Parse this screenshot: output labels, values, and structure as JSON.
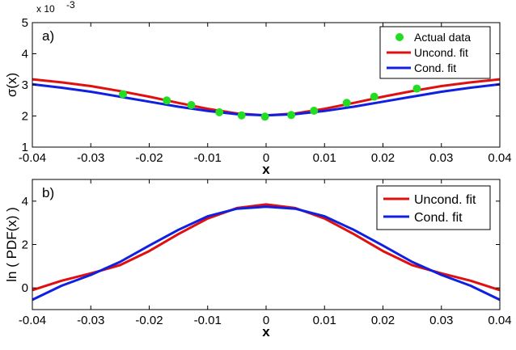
{
  "chart_data": [
    {
      "type": "line",
      "panel_label": "a)",
      "xlabel": "x",
      "ylabel": "σ(x)",
      "y_multiplier": "x 10",
      "y_multiplier_exp": "-3",
      "xlim": [
        -0.04,
        0.04
      ],
      "ylim": [
        1,
        5
      ],
      "xticks": [
        -0.04,
        -0.03,
        -0.02,
        -0.01,
        0,
        0.01,
        0.02,
        0.03,
        0.04
      ],
      "xtick_labels": [
        "-0.04",
        "-0.03",
        "-0.02",
        "-0.01",
        "0",
        "0.01",
        "0.02",
        "0.03",
        "0.04"
      ],
      "yticks": [
        1,
        2,
        3,
        4,
        5
      ],
      "ytick_labels": [
        "1",
        "2",
        "3",
        "4",
        "5"
      ],
      "legend_position": "top-right",
      "series": [
        {
          "name": "Actual data",
          "kind": "scatter",
          "color": "#22dd22",
          "x": [
            -0.0245,
            -0.017,
            -0.0128,
            -0.008,
            -0.0042,
            -0.0002,
            0.0043,
            0.0082,
            0.0138,
            0.0185,
            0.0258
          ],
          "y": [
            2.7,
            2.5,
            2.35,
            2.12,
            2.02,
            1.98,
            2.03,
            2.17,
            2.42,
            2.62,
            2.88
          ]
        },
        {
          "name": "Uncond. fit",
          "kind": "line",
          "color": "#e01010",
          "x": [
            -0.04,
            -0.035,
            -0.03,
            -0.025,
            -0.02,
            -0.015,
            -0.01,
            -0.005,
            0,
            0.005,
            0.01,
            0.015,
            0.02,
            0.025,
            0.03,
            0.035,
            0.04
          ],
          "y": [
            3.18,
            3.08,
            2.96,
            2.8,
            2.62,
            2.42,
            2.23,
            2.08,
            2.02,
            2.08,
            2.23,
            2.42,
            2.62,
            2.8,
            2.96,
            3.08,
            3.18
          ]
        },
        {
          "name": "Cond. fit",
          "kind": "line",
          "color": "#1020e0",
          "x": [
            -0.04,
            -0.035,
            -0.03,
            -0.025,
            -0.02,
            -0.015,
            -0.01,
            -0.005,
            0,
            0.005,
            0.01,
            0.015,
            0.02,
            0.025,
            0.03,
            0.035,
            0.04
          ],
          "y": [
            3.02,
            2.91,
            2.78,
            2.62,
            2.46,
            2.3,
            2.16,
            2.06,
            2.02,
            2.06,
            2.16,
            2.3,
            2.46,
            2.62,
            2.78,
            2.91,
            3.02
          ]
        }
      ]
    },
    {
      "type": "line",
      "panel_label": "b)",
      "xlabel": "x",
      "ylabel": "ln ( PDF(x) )",
      "xlim": [
        -0.04,
        0.04
      ],
      "ylim": [
        -1,
        5
      ],
      "xticks": [
        -0.04,
        -0.03,
        -0.02,
        -0.01,
        0,
        0.01,
        0.02,
        0.03,
        0.04
      ],
      "xtick_labels": [
        "-0.04",
        "-0.03",
        "-0.02",
        "-0.01",
        "0",
        "0.01",
        "0.02",
        "0.03",
        "0.04"
      ],
      "yticks": [
        0,
        2,
        4
      ],
      "ytick_labels": [
        "0",
        "2",
        "4"
      ],
      "legend_position": "top-right",
      "series": [
        {
          "name": "Uncond. fit",
          "kind": "line",
          "color": "#e01010",
          "x": [
            -0.04,
            -0.035,
            -0.03,
            -0.025,
            -0.02,
            -0.015,
            -0.01,
            -0.005,
            0,
            0.005,
            0.01,
            0.015,
            0.02,
            0.025,
            0.03,
            0.035,
            0.04
          ],
          "y": [
            -0.1,
            0.33,
            0.67,
            1.05,
            1.7,
            2.48,
            3.2,
            3.68,
            3.85,
            3.68,
            3.2,
            2.48,
            1.7,
            1.05,
            0.67,
            0.33,
            -0.1
          ]
        },
        {
          "name": "Cond. fit",
          "kind": "line",
          "color": "#1020e0",
          "x": [
            -0.04,
            -0.035,
            -0.03,
            -0.025,
            -0.02,
            -0.015,
            -0.01,
            -0.005,
            0,
            0.005,
            0.01,
            0.015,
            0.02,
            0.025,
            0.03,
            0.035,
            0.04
          ],
          "y": [
            -0.55,
            0.1,
            0.6,
            1.2,
            1.95,
            2.68,
            3.3,
            3.65,
            3.74,
            3.65,
            3.3,
            2.68,
            1.95,
            1.2,
            0.6,
            0.1,
            -0.55
          ]
        }
      ]
    }
  ]
}
